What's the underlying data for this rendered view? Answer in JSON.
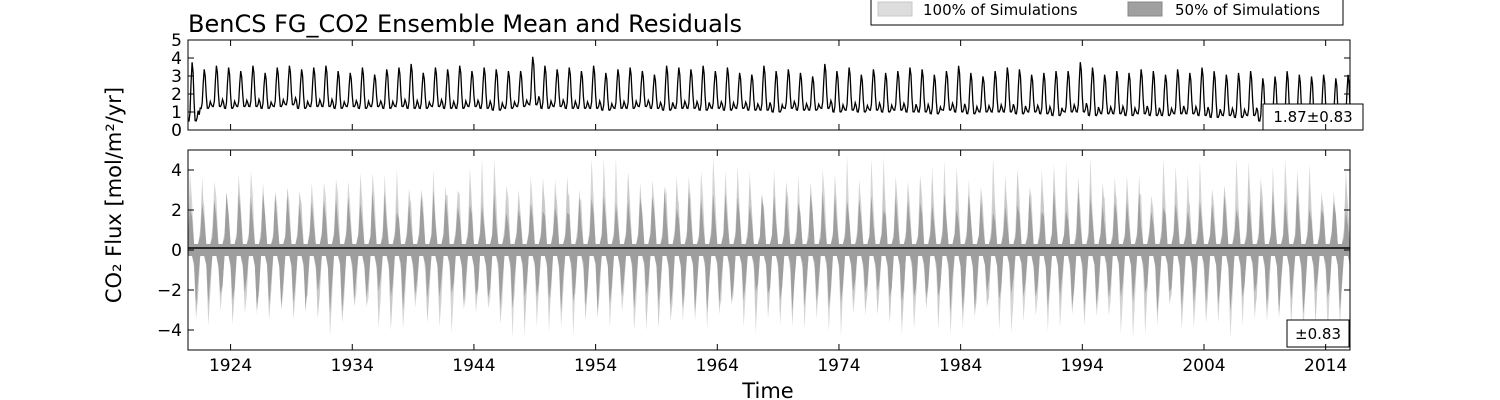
{
  "chart_data": {
    "type": "line",
    "title": "BenCS FG_CO2 Ensemble Mean and Residuals",
    "xlabel": "Time",
    "ylabel": "CO₂ Flux [mol/m²/yr]",
    "xlim": [
      1920.5,
      2016
    ],
    "xticks": [
      "1924",
      "1934",
      "1944",
      "1954",
      "1964",
      "1974",
      "1984",
      "1994",
      "2004",
      "2014"
    ],
    "legend": {
      "placement": "top-right",
      "entries": [
        {
          "label": "100% of Simulations",
          "color": "#dddddd"
        },
        {
          "label": "50% of Simulations",
          "color": "#a0a0a0"
        }
      ]
    },
    "panels": [
      {
        "name": "ensemble-mean",
        "ylim": [
          0,
          5
        ],
        "yticks": [
          "0",
          "1",
          "2",
          "3",
          "4",
          "5"
        ],
        "stat_label": "1.87±0.83",
        "series": [
          {
            "kind": "seasonal-cycle",
            "start_year": 1920.5,
            "end_year": 2016,
            "cycle_years": 1,
            "peak": [
              3.8,
              3.4,
              3.6,
              3.5,
              3.3,
              3.6,
              3.2,
              3.5,
              3.6,
              3.4,
              3.5,
              3.6,
              3.3,
              3.2,
              3.5,
              3.1,
              3.4,
              3.5,
              3.7,
              3.2,
              3.5,
              3.4,
              3.6,
              3.3,
              3.5,
              3.4,
              3.3,
              3.3,
              4.1,
              3.6,
              3.4,
              3.5,
              3.3,
              3.6,
              3.2,
              3.4,
              3.5,
              3.3,
              3.1,
              3.6,
              3.5,
              3.4,
              3.6,
              3.3,
              3.5,
              3.2,
              3.1,
              3.6,
              3.3,
              3.4,
              3.2,
              3.0,
              3.7,
              3.3,
              3.5,
              3.1,
              3.4,
              3.2,
              3.3,
              3.5,
              3.4,
              3.1,
              3.3,
              3.6,
              3.2,
              3.0,
              3.3,
              3.5,
              3.4,
              3.1,
              3.2,
              3.3,
              3.3,
              3.8,
              3.5,
              3.1,
              3.3,
              3.2,
              3.4,
              3.3,
              3.1,
              3.4,
              3.2,
              3.5,
              3.3,
              3.1,
              3.2,
              3.3,
              2.9,
              3.0,
              3.3,
              3.1,
              3.0,
              3.1,
              2.9,
              3.1
            ],
            "trough": [
              0.5,
              1.2,
              1.3,
              1.2,
              1.3,
              1.3,
              1.2,
              1.3,
              1.4,
              1.2,
              1.3,
              1.3,
              1.2,
              1.3,
              1.2,
              1.3,
              1.2,
              1.3,
              1.2,
              1.2,
              1.3,
              1.2,
              1.2,
              1.3,
              1.2,
              1.1,
              1.2,
              1.3,
              1.4,
              1.2,
              1.3,
              1.2,
              1.2,
              1.2,
              1.1,
              1.2,
              1.2,
              1.3,
              1.2,
              1.1,
              1.2,
              1.2,
              1.1,
              1.2,
              1.1,
              1.2,
              1.1,
              1.1,
              1.0,
              1.2,
              1.1,
              1.1,
              1.2,
              1.0,
              1.1,
              1.0,
              1.1,
              1.0,
              1.1,
              1.0,
              1.0,
              0.9,
              1.1,
              1.0,
              0.9,
              1.0,
              1.0,
              1.0,
              0.9,
              1.0,
              0.9,
              0.8,
              1.0,
              1.0,
              0.8,
              0.9,
              0.9,
              0.8,
              0.9,
              0.8,
              0.8,
              0.9,
              0.9,
              0.8,
              0.7,
              0.8,
              0.7,
              0.8,
              0.5,
              0.6,
              0.5,
              0.6,
              0.5,
              0.6,
              0.5,
              0.5
            ],
            "color": "#000000"
          }
        ]
      },
      {
        "name": "residuals",
        "ylim": [
          -5,
          5
        ],
        "yticks": [
          "−4",
          "−2",
          "0",
          "2",
          "4"
        ],
        "stat_label": "±0.83",
        "zero_line": true,
        "bands": [
          {
            "name": "100% of Simulations",
            "upper_peak_range": [
              2.4,
              4.6
            ],
            "lower_peak_range": [
              -2.5,
              -4.3
            ],
            "color": "#dddddd"
          },
          {
            "name": "50% of Simulations",
            "upper_peak_range": [
              1.6,
              2.8
            ],
            "lower_peak_range": [
              -1.8,
              -3.0
            ],
            "color": "#a0a0a0"
          }
        ]
      }
    ]
  }
}
